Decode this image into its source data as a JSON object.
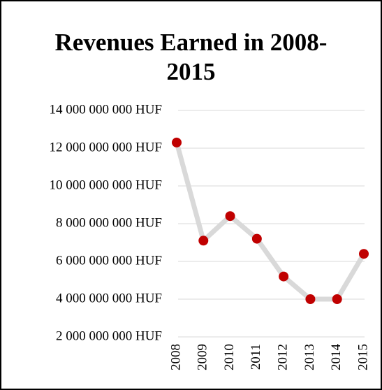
{
  "chart_data": {
    "type": "line",
    "title": "Revenues Earned in 2008-2015",
    "categories": [
      "2008",
      "2009",
      "2010",
      "2011",
      "2012",
      "2013",
      "2014",
      "2015"
    ],
    "series": [
      {
        "name": "Revenues",
        "line_color": "#d9d9d9",
        "color": "#c00000",
        "values": [
          12300000000,
          7100000000,
          8400000000,
          7200000000,
          5200000000,
          4000000000,
          4000000000,
          6400000000
        ]
      }
    ],
    "ylim": [
      2000000000,
      14000000000
    ],
    "yticks": [
      {
        "value": 2000000000,
        "label": "2 000 000 000 HUF"
      },
      {
        "value": 4000000000,
        "label": "4 000 000 000 HUF"
      },
      {
        "value": 6000000000,
        "label": "6 000 000 000 HUF"
      },
      {
        "value": 8000000000,
        "label": "8 000 000 000 HUF"
      },
      {
        "value": 10000000000,
        "label": "10 000 000 000 HUF"
      },
      {
        "value": 12000000000,
        "label": "12 000 000 000 HUF"
      },
      {
        "value": 14000000000,
        "label": "14 000 000 000 HUF"
      }
    ],
    "grid": true
  }
}
